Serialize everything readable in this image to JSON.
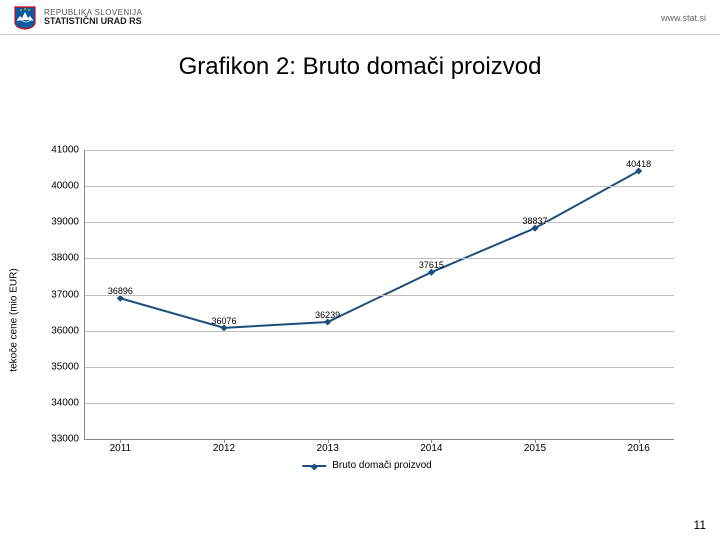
{
  "header": {
    "org_line1": "REPUBLIKA SLOVENIJA",
    "org_line2": "STATISTIČNI URAD RS",
    "url": "www.stat.si",
    "coat_colors": {
      "shield": "#0b5aa6",
      "red": "#d40a12",
      "white": "#ffffff",
      "gold": "#f3c300"
    }
  },
  "title": "Grafikon 2: Bruto domači proizvod",
  "chart": {
    "type": "line",
    "ylabel": "tekoče cene (mio EUR)",
    "x_categories": [
      "2011",
      "2012",
      "2013",
      "2014",
      "2015",
      "2016"
    ],
    "values": [
      36896,
      36076,
      36239,
      37615,
      38837,
      40418
    ],
    "value_labels": [
      "36896",
      "36076",
      "36239",
      "37615",
      "38837",
      "40418"
    ],
    "ylim": [
      33000,
      41000
    ],
    "ytick_step": 1000,
    "yticks": [
      33000,
      34000,
      35000,
      36000,
      37000,
      38000,
      39000,
      40000,
      41000
    ],
    "line_color": "#1f4e79",
    "line_width": 2,
    "marker": "diamond",
    "marker_size": 5,
    "marker_color": "#1f4e79",
    "grid_color": "#bfbfbf",
    "axis_color": "#888888",
    "background_color": "#ffffff",
    "title_fontsize": 24,
    "label_fontsize": 10,
    "tick_fontsize": 10,
    "data_label_fontsize": 9
  },
  "legend": {
    "label": "Bruto domači proizvod"
  },
  "page_number": "11"
}
